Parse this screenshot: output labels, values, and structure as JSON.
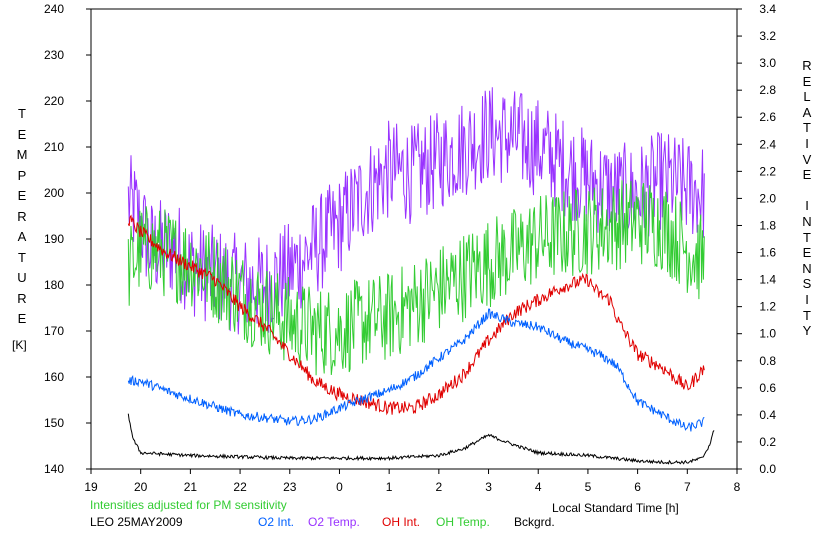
{
  "chart_data": {
    "type": "line",
    "xlabel": "Local Standard Time [h]",
    "x_ticks": [
      "19",
      "20",
      "21",
      "22",
      "23",
      "0",
      "1",
      "2",
      "3",
      "4",
      "5",
      "6",
      "7",
      "8"
    ],
    "x_range_hours_after_19": [
      0,
      13
    ],
    "left_axis": {
      "label_letters": [
        "T",
        "E",
        "M",
        "P",
        "E",
        "R",
        "A",
        "T",
        "U",
        "R",
        "E"
      ],
      "unit": "[K]",
      "range": [
        140,
        240
      ],
      "ticks": [
        "140",
        "150",
        "160",
        "170",
        "180",
        "190",
        "200",
        "210",
        "220",
        "230",
        "240"
      ]
    },
    "right_axis": {
      "label_letters": [
        "R",
        "E",
        "L",
        "A",
        "T",
        "I",
        "V",
        "E",
        "",
        "I",
        "N",
        "T",
        "E",
        "N",
        "S",
        "I",
        "T",
        "Y"
      ],
      "range": [
        0.0,
        3.4
      ],
      "ticks": [
        "0.0",
        "0.2",
        "0.4",
        "0.6",
        "0.8",
        "1.0",
        "1.2",
        "1.4",
        "1.6",
        "1.8",
        "2.0",
        "2.2",
        "2.4",
        "2.6",
        "2.8",
        "3.0",
        "3.2",
        "3.4"
      ]
    },
    "note": "Intensities adjusted for PM sensitivity",
    "station": "LEO 25MAY2009",
    "legend": [
      {
        "name": "O2 Int.",
        "color": "#0060ff"
      },
      {
        "name": "O2 Temp.",
        "color": "#9933ff"
      },
      {
        "name": "OH Int.",
        "color": "#e00000"
      },
      {
        "name": "OH Temp.",
        "color": "#33cc33"
      },
      {
        "name": "Bckgrd.",
        "color": "#000000"
      }
    ],
    "series": [
      {
        "name": "O2 Temp.",
        "axis": "left",
        "color": "#9933ff",
        "noise": 11,
        "points": [
          [
            19.75,
            198
          ],
          [
            19.9,
            196
          ],
          [
            20.2,
            188
          ],
          [
            20.7,
            188
          ],
          [
            21,
            184
          ],
          [
            21.5,
            182
          ],
          [
            22,
            180
          ],
          [
            22.5,
            180
          ],
          [
            23,
            183
          ],
          [
            23.5,
            188
          ],
          [
            0,
            193
          ],
          [
            0.5,
            200
          ],
          [
            1,
            205
          ],
          [
            1.5,
            204
          ],
          [
            2,
            207
          ],
          [
            2.5,
            210
          ],
          [
            3,
            213
          ],
          [
            3.5,
            212
          ],
          [
            4,
            210
          ],
          [
            4.5,
            206
          ],
          [
            5,
            203
          ],
          [
            5.5,
            200
          ],
          [
            6,
            200
          ],
          [
            6.5,
            203
          ],
          [
            7,
            201
          ],
          [
            7.35,
            200
          ]
        ]
      },
      {
        "name": "OH Temp.",
        "axis": "left",
        "color": "#33cc33",
        "noise": 10,
        "points": [
          [
            19.75,
            183
          ],
          [
            20,
            188
          ],
          [
            20.5,
            187
          ],
          [
            21,
            185
          ],
          [
            21.5,
            182
          ],
          [
            22,
            178
          ],
          [
            22.5,
            175
          ],
          [
            23,
            172
          ],
          [
            23.5,
            170
          ],
          [
            0,
            170
          ],
          [
            0.5,
            172
          ],
          [
            1,
            173
          ],
          [
            1.5,
            176
          ],
          [
            2,
            179
          ],
          [
            2.5,
            182
          ],
          [
            3,
            185
          ],
          [
            3.5,
            187
          ],
          [
            4,
            190
          ],
          [
            4.5,
            191
          ],
          [
            5,
            192
          ],
          [
            5.5,
            193
          ],
          [
            6,
            194
          ],
          [
            6.5,
            193
          ],
          [
            7,
            188
          ],
          [
            7.35,
            185
          ]
        ]
      },
      {
        "name": "OH Int.",
        "axis": "right",
        "color": "#e00000",
        "noise": 0.05,
        "points": [
          [
            19.75,
            1.85
          ],
          [
            20,
            1.75
          ],
          [
            20.5,
            1.6
          ],
          [
            21,
            1.5
          ],
          [
            21.5,
            1.4
          ],
          [
            22,
            1.2
          ],
          [
            22.5,
            1.05
          ],
          [
            23,
            0.85
          ],
          [
            23.5,
            0.65
          ],
          [
            0,
            0.55
          ],
          [
            0.5,
            0.5
          ],
          [
            1,
            0.45
          ],
          [
            1.5,
            0.45
          ],
          [
            2,
            0.55
          ],
          [
            2.5,
            0.7
          ],
          [
            3,
            0.95
          ],
          [
            3.5,
            1.15
          ],
          [
            4,
            1.25
          ],
          [
            4.5,
            1.35
          ],
          [
            5,
            1.4
          ],
          [
            5.2,
            1.3
          ],
          [
            5.45,
            1.25
          ],
          [
            5.6,
            1.1
          ],
          [
            6,
            0.85
          ],
          [
            6.5,
            0.75
          ],
          [
            7,
            0.6
          ],
          [
            7.35,
            0.75
          ]
        ]
      },
      {
        "name": "O2 Int.",
        "axis": "right",
        "color": "#0060ff",
        "noise": 0.035,
        "points": [
          [
            19.75,
            0.65
          ],
          [
            20,
            0.65
          ],
          [
            20.5,
            0.58
          ],
          [
            21,
            0.52
          ],
          [
            21.5,
            0.46
          ],
          [
            22,
            0.4
          ],
          [
            22.5,
            0.38
          ],
          [
            23,
            0.35
          ],
          [
            23.5,
            0.37
          ],
          [
            0,
            0.45
          ],
          [
            0.5,
            0.52
          ],
          [
            1,
            0.58
          ],
          [
            1.5,
            0.68
          ],
          [
            2,
            0.82
          ],
          [
            2.5,
            0.95
          ],
          [
            3,
            1.15
          ],
          [
            3.5,
            1.08
          ],
          [
            4,
            1.05
          ],
          [
            4.5,
            0.95
          ],
          [
            5,
            0.88
          ],
          [
            5.2,
            0.85
          ],
          [
            5.45,
            0.8
          ],
          [
            5.6,
            0.75
          ],
          [
            6,
            0.5
          ],
          [
            6.5,
            0.4
          ],
          [
            7,
            0.3
          ],
          [
            7.35,
            0.35
          ]
        ]
      },
      {
        "name": "Bckgrd.",
        "axis": "right",
        "color": "#000000",
        "noise": 0.012,
        "points": [
          [
            19.75,
            0.4
          ],
          [
            19.85,
            0.22
          ],
          [
            20,
            0.12
          ],
          [
            21,
            0.1
          ],
          [
            22,
            0.09
          ],
          [
            23,
            0.08
          ],
          [
            0,
            0.08
          ],
          [
            1,
            0.08
          ],
          [
            2,
            0.1
          ],
          [
            2.5,
            0.15
          ],
          [
            3,
            0.25
          ],
          [
            3.5,
            0.18
          ],
          [
            4,
            0.12
          ],
          [
            5,
            0.1
          ],
          [
            6,
            0.06
          ],
          [
            6.5,
            0.05
          ],
          [
            7,
            0.05
          ],
          [
            7.3,
            0.08
          ],
          [
            7.45,
            0.18
          ],
          [
            7.55,
            0.3
          ]
        ]
      }
    ]
  }
}
